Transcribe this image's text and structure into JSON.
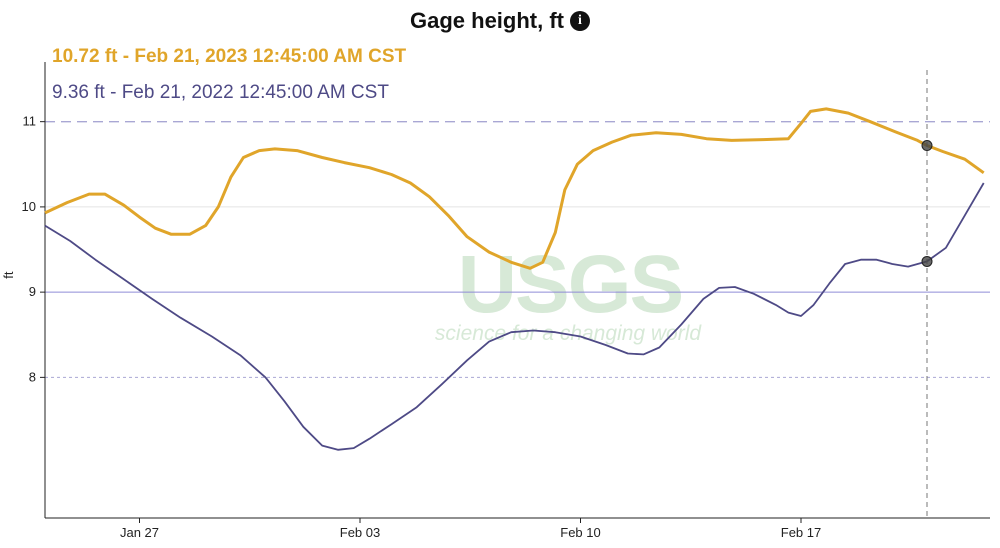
{
  "title": "Gage height, ft",
  "info_icon": "info-icon",
  "watermark": {
    "logo": "USGS",
    "tagline": "science for a changing world",
    "color": "#d7e9d7"
  },
  "legend": {
    "current": {
      "text": "10.72 ft - Feb 21, 2023 12:45:00 AM CST",
      "color": "#e0a52a"
    },
    "previous": {
      "text": "9.36 ft - Feb 21, 2022 12:45:00 AM CST",
      "color": "#4e4a86"
    }
  },
  "chart_data": {
    "type": "line",
    "ylabel": "ft",
    "xlim": [
      "Jan 24",
      "Feb 23"
    ],
    "ylim": [
      6.35,
      11.7
    ],
    "xticks": [
      {
        "label": "Jan 27",
        "day": 3
      },
      {
        "label": "Feb 03",
        "day": 10
      },
      {
        "label": "Feb 10",
        "day": 17
      },
      {
        "label": "Feb 17",
        "day": 24
      }
    ],
    "yticks": [
      8,
      9,
      10,
      11
    ],
    "reference_lines": [
      {
        "value": 11,
        "style": "dashed",
        "color": "#a9a7d4"
      },
      {
        "value": 10,
        "style": "solid",
        "color": "#e4e4e4"
      },
      {
        "value": 9,
        "style": "solid",
        "color": "#8f8cd6"
      },
      {
        "value": 8,
        "style": "dotted",
        "color": "#a9a7d4"
      }
    ],
    "cursor": {
      "x_day": 28.0,
      "label": "Feb 21 12:45 AM"
    },
    "series": [
      {
        "color": "#e0a52a",
        "points": [
          [
            0.0,
            9.93
          ],
          [
            0.7,
            10.05
          ],
          [
            1.4,
            10.15
          ],
          [
            1.9,
            10.15
          ],
          [
            2.5,
            10.02
          ],
          [
            3.0,
            9.88
          ],
          [
            3.5,
            9.75
          ],
          [
            4.0,
            9.68
          ],
          [
            4.6,
            9.68
          ],
          [
            5.1,
            9.78
          ],
          [
            5.5,
            10.0
          ],
          [
            5.9,
            10.35
          ],
          [
            6.3,
            10.58
          ],
          [
            6.8,
            10.66
          ],
          [
            7.3,
            10.68
          ],
          [
            8.0,
            10.66
          ],
          [
            8.8,
            10.58
          ],
          [
            9.5,
            10.52
          ],
          [
            10.3,
            10.46
          ],
          [
            11.0,
            10.38
          ],
          [
            11.6,
            10.28
          ],
          [
            12.2,
            10.12
          ],
          [
            12.8,
            9.9
          ],
          [
            13.4,
            9.65
          ],
          [
            14.1,
            9.47
          ],
          [
            14.8,
            9.35
          ],
          [
            15.4,
            9.28
          ],
          [
            15.8,
            9.35
          ],
          [
            16.2,
            9.7
          ],
          [
            16.5,
            10.2
          ],
          [
            16.9,
            10.5
          ],
          [
            17.4,
            10.66
          ],
          [
            18.0,
            10.76
          ],
          [
            18.6,
            10.84
          ],
          [
            19.4,
            10.87
          ],
          [
            20.2,
            10.85
          ],
          [
            21.0,
            10.8
          ],
          [
            21.8,
            10.78
          ],
          [
            22.8,
            10.79
          ],
          [
            23.6,
            10.8
          ],
          [
            24.0,
            10.98
          ],
          [
            24.3,
            11.12
          ],
          [
            24.8,
            11.15
          ],
          [
            25.5,
            11.1
          ],
          [
            26.2,
            11.0
          ],
          [
            27.0,
            10.88
          ],
          [
            27.7,
            10.78
          ],
          [
            28.0,
            10.72
          ],
          [
            28.5,
            10.65
          ],
          [
            29.2,
            10.56
          ],
          [
            29.8,
            10.4
          ]
        ]
      },
      {
        "color": "#4e4a86",
        "points": [
          [
            0.0,
            9.78
          ],
          [
            0.8,
            9.6
          ],
          [
            1.6,
            9.38
          ],
          [
            2.5,
            9.15
          ],
          [
            3.4,
            8.92
          ],
          [
            4.3,
            8.7
          ],
          [
            5.3,
            8.48
          ],
          [
            6.2,
            8.26
          ],
          [
            7.0,
            8.0
          ],
          [
            7.6,
            7.72
          ],
          [
            8.2,
            7.42
          ],
          [
            8.8,
            7.2
          ],
          [
            9.3,
            7.15
          ],
          [
            9.8,
            7.17
          ],
          [
            10.3,
            7.28
          ],
          [
            11.0,
            7.45
          ],
          [
            11.8,
            7.65
          ],
          [
            12.6,
            7.92
          ],
          [
            13.4,
            8.2
          ],
          [
            14.1,
            8.42
          ],
          [
            14.8,
            8.53
          ],
          [
            15.5,
            8.55
          ],
          [
            16.2,
            8.53
          ],
          [
            17.0,
            8.48
          ],
          [
            17.8,
            8.38
          ],
          [
            18.5,
            8.28
          ],
          [
            19.0,
            8.27
          ],
          [
            19.5,
            8.35
          ],
          [
            20.2,
            8.62
          ],
          [
            20.9,
            8.92
          ],
          [
            21.4,
            9.05
          ],
          [
            21.9,
            9.06
          ],
          [
            22.5,
            8.98
          ],
          [
            23.2,
            8.85
          ],
          [
            23.6,
            8.76
          ],
          [
            24.0,
            8.72
          ],
          [
            24.4,
            8.85
          ],
          [
            24.9,
            9.1
          ],
          [
            25.4,
            9.33
          ],
          [
            25.9,
            9.38
          ],
          [
            26.4,
            9.38
          ],
          [
            26.9,
            9.33
          ],
          [
            27.4,
            9.3
          ],
          [
            28.0,
            9.36
          ],
          [
            28.6,
            9.52
          ],
          [
            29.2,
            9.9
          ],
          [
            29.8,
            10.28
          ]
        ]
      }
    ]
  }
}
